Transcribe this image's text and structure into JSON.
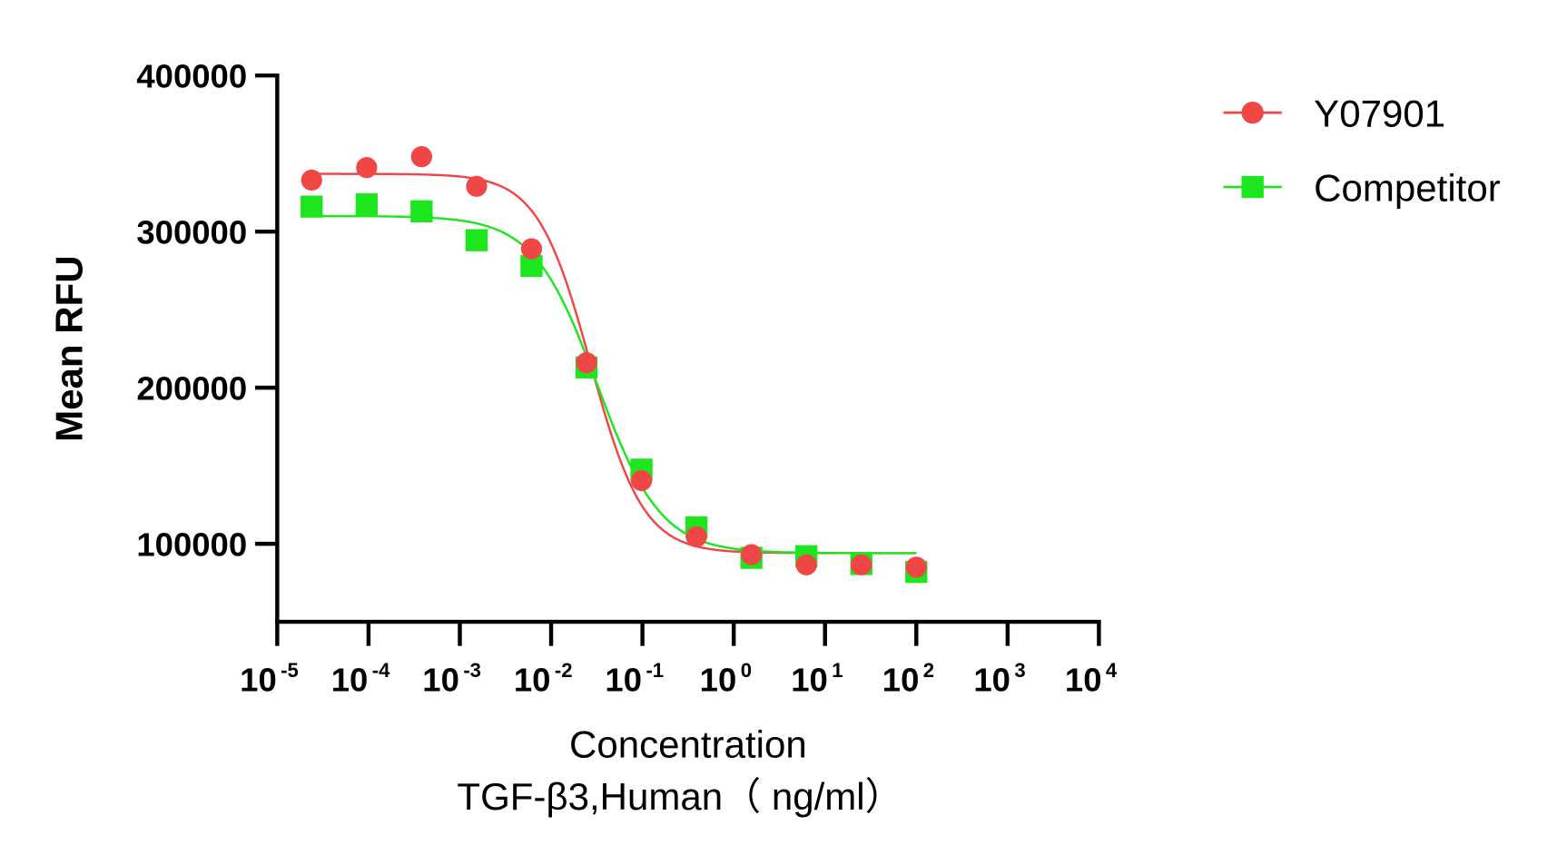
{
  "chart_data": {
    "type": "scatter",
    "title": "",
    "xlabel": "Concentration",
    "xlabel_line2": "TGF-β3,Human（ ng/ml）",
    "ylabel": "Mean RFU",
    "xscale": "log",
    "xlim": [
      1e-05,
      10000
    ],
    "ylim": [
      50000,
      400000
    ],
    "grid": false,
    "legend_position": "top-right",
    "x_ticks": [
      {
        "base": "10",
        "exp": "-5",
        "value": 1e-05
      },
      {
        "base": "10",
        "exp": "-4",
        "value": 0.0001
      },
      {
        "base": "10",
        "exp": "-3",
        "value": 0.001
      },
      {
        "base": "10",
        "exp": "-2",
        "value": 0.01
      },
      {
        "base": "10",
        "exp": "-1",
        "value": 0.1
      },
      {
        "base": "10",
        "exp": "0",
        "value": 1
      },
      {
        "base": "10",
        "exp": "1",
        "value": 10
      },
      {
        "base": "10",
        "exp": "2",
        "value": 100
      },
      {
        "base": "10",
        "exp": "3",
        "value": 1000
      },
      {
        "base": "10",
        "exp": "4",
        "value": 10000
      }
    ],
    "y_ticks": [
      {
        "label": "100000",
        "value": 100000
      },
      {
        "label": "200000",
        "value": 200000
      },
      {
        "label": "300000",
        "value": 300000
      },
      {
        "label": "400000",
        "value": 400000
      }
    ],
    "x": [
      2.38e-05,
      9.54e-05,
      0.000381,
      0.001526,
      0.0061,
      0.0244,
      0.0977,
      0.3906,
      1.5625,
      6.25,
      25,
      100
    ],
    "series": [
      {
        "name": "Y07901",
        "color": "#f04646",
        "marker": "circle",
        "values": [
          333000,
          341000,
          348000,
          329000,
          289000,
          216000,
          140500,
          104500,
          93000,
          86500,
          86500,
          85000
        ],
        "fit": {
          "top": 337000,
          "bottom": 94000,
          "ic50": 0.027,
          "hill": 1.5
        }
      },
      {
        "name": "Competitor",
        "color": "#1ee61e",
        "marker": "square",
        "values": [
          316000,
          317500,
          313000,
          294500,
          278000,
          213000,
          147500,
          110500,
          91000,
          92000,
          87000,
          82000
        ],
        "fit": {
          "top": 310000,
          "bottom": 94000,
          "ic50": 0.032,
          "hill": 1.25
        }
      }
    ]
  }
}
